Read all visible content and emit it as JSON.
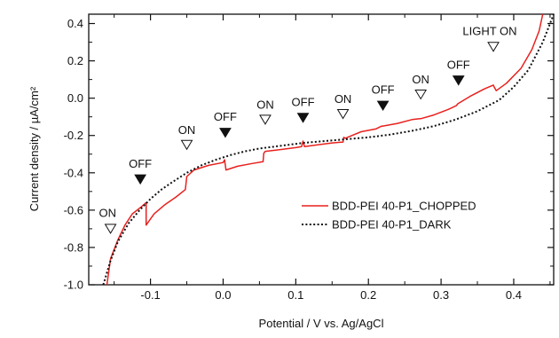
{
  "chart_data": {
    "type": "line",
    "xlabel": "Potential / V  vs. Ag/AgCl",
    "ylabel": "Current density / µA/cm²",
    "xlim": [
      -0.185,
      0.455
    ],
    "ylim": [
      -1.0,
      0.45
    ],
    "xticks": [
      -0.1,
      0.0,
      0.1,
      0.2,
      0.3,
      0.4
    ],
    "xtick_labels": [
      "-0.1",
      "0.0",
      "0.1",
      "0.2",
      "0.3",
      "0.4"
    ],
    "yticks": [
      -1.0,
      -0.8,
      -0.6,
      -0.4,
      -0.2,
      0.0,
      0.2,
      0.4
    ],
    "ytick_labels": [
      "-1.0",
      "-0.8",
      "-0.6",
      "-0.4",
      "-0.2",
      "0.0",
      "0.2",
      "0.4"
    ],
    "grid": false,
    "legend_position": "lower-right",
    "series": [
      {
        "name": "BDD-PEI 40-P1_CHOPPED",
        "color": "#e8211e",
        "style": "solid",
        "x": [
          -0.16,
          -0.155,
          -0.145,
          -0.135,
          -0.125,
          -0.112,
          -0.106,
          -0.106,
          -0.095,
          -0.08,
          -0.065,
          -0.052,
          -0.05,
          -0.04,
          -0.02,
          0.0,
          0.002,
          0.004,
          0.02,
          0.04,
          0.055,
          0.056,
          0.058,
          0.08,
          0.1,
          0.108,
          0.11,
          0.112,
          0.13,
          0.15,
          0.165,
          0.166,
          0.168,
          0.19,
          0.21,
          0.218,
          0.219,
          0.24,
          0.26,
          0.271,
          0.272,
          0.29,
          0.31,
          0.321,
          0.323,
          0.34,
          0.36,
          0.372,
          0.373,
          0.376,
          0.39,
          0.41,
          0.425,
          0.435,
          0.44
        ],
        "y": [
          -1.0,
          -0.86,
          -0.76,
          -0.68,
          -0.62,
          -0.58,
          -0.56,
          -0.68,
          -0.62,
          -0.57,
          -0.53,
          -0.49,
          -0.42,
          -0.385,
          -0.36,
          -0.345,
          -0.33,
          -0.385,
          -0.365,
          -0.35,
          -0.34,
          -0.295,
          -0.285,
          -0.275,
          -0.265,
          -0.26,
          -0.23,
          -0.26,
          -0.25,
          -0.24,
          -0.235,
          -0.21,
          -0.215,
          -0.18,
          -0.165,
          -0.15,
          -0.15,
          -0.135,
          -0.115,
          -0.11,
          -0.11,
          -0.09,
          -0.06,
          -0.04,
          -0.03,
          0.01,
          0.05,
          0.07,
          0.06,
          0.04,
          0.08,
          0.16,
          0.26,
          0.36,
          0.45
        ]
      },
      {
        "name": "BDD-PEI 40-P1_DARK",
        "color": "#111111",
        "style": "dotted",
        "x": [
          -0.165,
          -0.155,
          -0.145,
          -0.13,
          -0.115,
          -0.1,
          -0.085,
          -0.07,
          -0.05,
          -0.03,
          -0.01,
          0.01,
          0.03,
          0.05,
          0.08,
          0.11,
          0.14,
          0.17,
          0.2,
          0.23,
          0.26,
          0.29,
          0.32,
          0.35,
          0.38,
          0.4,
          0.42,
          0.44,
          0.455
        ],
        "y": [
          -1.0,
          -0.87,
          -0.77,
          -0.67,
          -0.6,
          -0.54,
          -0.49,
          -0.45,
          -0.4,
          -0.36,
          -0.33,
          -0.305,
          -0.285,
          -0.27,
          -0.255,
          -0.24,
          -0.23,
          -0.22,
          -0.21,
          -0.195,
          -0.175,
          -0.15,
          -0.115,
          -0.07,
          -0.01,
          0.06,
          0.15,
          0.3,
          0.45
        ]
      }
    ],
    "annotations": [
      {
        "label": "ON",
        "marker": "open",
        "x": -0.155,
        "y": -0.7,
        "label_x": -0.159,
        "label_y": -0.615
      },
      {
        "label": "OFF",
        "marker": "filled",
        "x": -0.114,
        "y": -0.435,
        "label_x": -0.114,
        "label_y": -0.35
      },
      {
        "label": "ON",
        "marker": "open",
        "x": -0.05,
        "y": -0.25,
        "label_x": -0.05,
        "label_y": -0.17
      },
      {
        "label": "OFF",
        "marker": "filled",
        "x": 0.003,
        "y": -0.185,
        "label_x": 0.003,
        "label_y": -0.1
      },
      {
        "label": "ON",
        "marker": "open",
        "x": 0.058,
        "y": -0.115,
        "label_x": 0.058,
        "label_y": -0.035
      },
      {
        "label": "OFF",
        "marker": "filled",
        "x": 0.11,
        "y": -0.105,
        "label_x": 0.11,
        "label_y": -0.02
      },
      {
        "label": "ON",
        "marker": "open",
        "x": 0.165,
        "y": -0.085,
        "label_x": 0.165,
        "label_y": -0.005
      },
      {
        "label": "OFF",
        "marker": "filled",
        "x": 0.22,
        "y": -0.04,
        "label_x": 0.22,
        "label_y": 0.045
      },
      {
        "label": "ON",
        "marker": "open",
        "x": 0.272,
        "y": 0.02,
        "label_x": 0.272,
        "label_y": 0.1
      },
      {
        "label": "OFF",
        "marker": "filled",
        "x": 0.324,
        "y": 0.095,
        "label_x": 0.324,
        "label_y": 0.18
      },
      {
        "label": "LIGHT ON",
        "marker": "open",
        "x": 0.372,
        "y": 0.275,
        "label_x": 0.367,
        "label_y": 0.36
      }
    ]
  }
}
